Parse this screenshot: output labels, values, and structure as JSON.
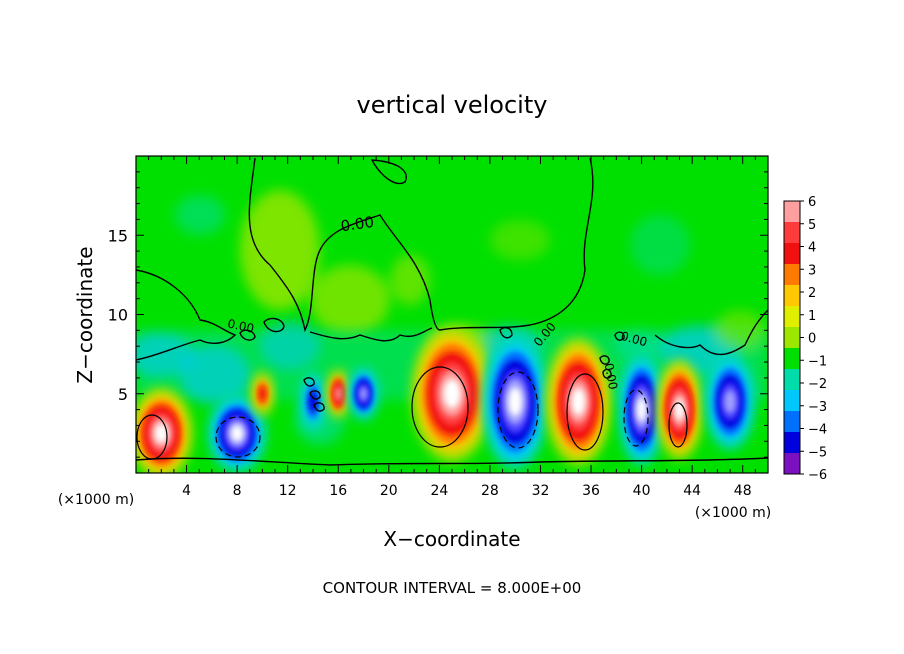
{
  "chart_data": {
    "type": "heatmap",
    "title": "vertical velocity",
    "xlabel": "X−coordinate",
    "ylabel": "Z−coordinate",
    "x_unit_left": "(×1000 m)",
    "x_unit_right": "(×1000 m)",
    "footer": "CONTOUR INTERVAL = 8.000E+00",
    "contour_label": "0.00",
    "xlim": [
      0,
      50
    ],
    "ylim": [
      0,
      20
    ],
    "x_ticks": [
      4,
      8,
      12,
      16,
      20,
      24,
      28,
      32,
      36,
      40,
      44,
      48
    ],
    "x_tick_labels": [
      "4",
      "8",
      "12",
      "16",
      "20",
      "24",
      "28",
      "32",
      "36",
      "40",
      "44",
      "48"
    ],
    "y_ticks": [
      5,
      10,
      15
    ],
    "y_tick_labels": [
      "5",
      "10",
      "15"
    ],
    "colorbar": {
      "values": [
        6,
        5,
        4,
        3,
        2,
        1,
        0,
        -1,
        -2,
        -3,
        -4,
        -5,
        -6
      ],
      "labels": [
        "6",
        "5",
        "4",
        "3",
        "2",
        "1",
        "0",
        "−1",
        "−2",
        "−3",
        "−4",
        "−5",
        "−6"
      ],
      "colors": [
        "#ff9f9f",
        "#ff3c3c",
        "#f01010",
        "#ff7a00",
        "#ffc800",
        "#e0ee00",
        "#9ce600",
        "#00e000",
        "#00ddaa",
        "#00c8ff",
        "#0070ff",
        "#0000dd",
        "#7a10c0"
      ]
    },
    "cells": [
      {
        "x": 2,
        "z": 2.5,
        "value": 7
      },
      {
        "x": 8,
        "z": 2.5,
        "value": -7
      },
      {
        "x": 10,
        "z": 5,
        "value": 4
      },
      {
        "x": 14,
        "z": 4.5,
        "value": -4
      },
      {
        "x": 16,
        "z": 5,
        "value": 6
      },
      {
        "x": 18,
        "z": 5,
        "value": -6
      },
      {
        "x": 25,
        "z": 5,
        "value": 8
      },
      {
        "x": 30,
        "z": 4.5,
        "value": -8
      },
      {
        "x": 35,
        "z": 4.5,
        "value": 8
      },
      {
        "x": 40,
        "z": 4,
        "value": -7
      },
      {
        "x": 43,
        "z": 4,
        "value": 7
      },
      {
        "x": 47,
        "z": 4.5,
        "value": -6
      }
    ],
    "grid": false,
    "legend": "right"
  }
}
